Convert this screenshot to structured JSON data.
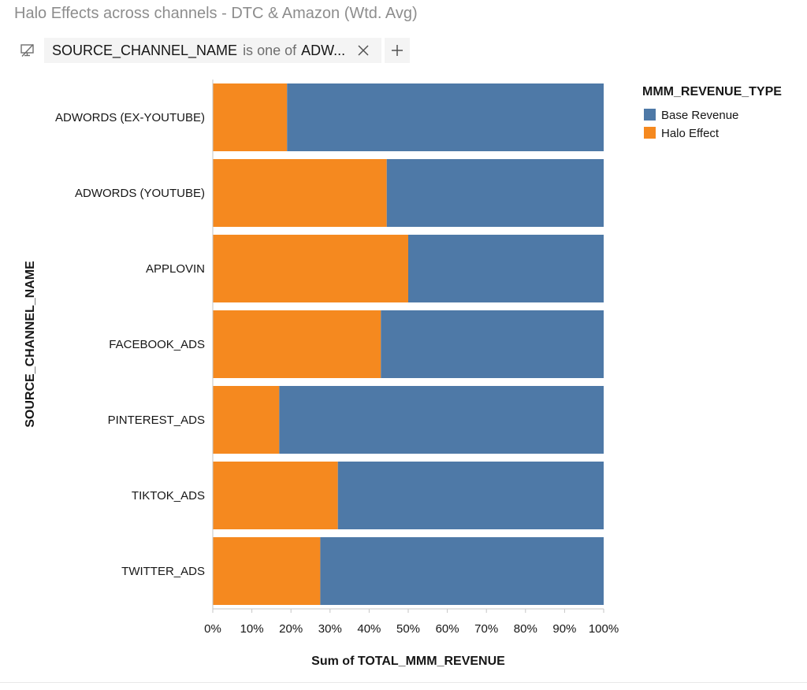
{
  "title": "Halo Effects across channels - DTC & Amazon (Wtd. Avg)",
  "filter": {
    "field": "SOURCE_CHANNEL_NAME",
    "operator": "is one of",
    "value": "ADW...",
    "icon": "filter-display-icon",
    "close_icon": "close-icon",
    "add_icon": "plus-icon"
  },
  "chart_data": {
    "type": "bar",
    "orientation": "horizontal",
    "stacked": "percent",
    "categories": [
      "ADWORDS (EX-YOUTUBE)",
      "ADWORDS (YOUTUBE)",
      "APPLOVIN",
      "FACEBOOK_ADS",
      "PINTEREST_ADS",
      "TIKTOK_ADS",
      "TWITTER_ADS"
    ],
    "series": [
      {
        "name": "Halo Effect",
        "color": "#f5891f",
        "values": [
          19,
          44.5,
          50,
          43,
          17,
          32,
          27.5
        ]
      },
      {
        "name": "Base Revenue",
        "color": "#4e79a7",
        "values": [
          81,
          55.5,
          50,
          57,
          83,
          68,
          72.5
        ]
      }
    ],
    "xlabel": "Sum of TOTAL_MMM_REVENUE",
    "ylabel": "SOURCE_CHANNEL_NAME",
    "xlim": [
      0,
      100
    ],
    "xticks": [
      "0%",
      "10%",
      "20%",
      "30%",
      "40%",
      "50%",
      "60%",
      "70%",
      "80%",
      "90%",
      "100%"
    ],
    "legend": {
      "title": "MMM_REVENUE_TYPE",
      "position": "top-right",
      "entries": [
        {
          "label": "Base Revenue",
          "color": "#4e79a7"
        },
        {
          "label": "Halo Effect",
          "color": "#f5891f"
        }
      ]
    },
    "grid": false
  }
}
